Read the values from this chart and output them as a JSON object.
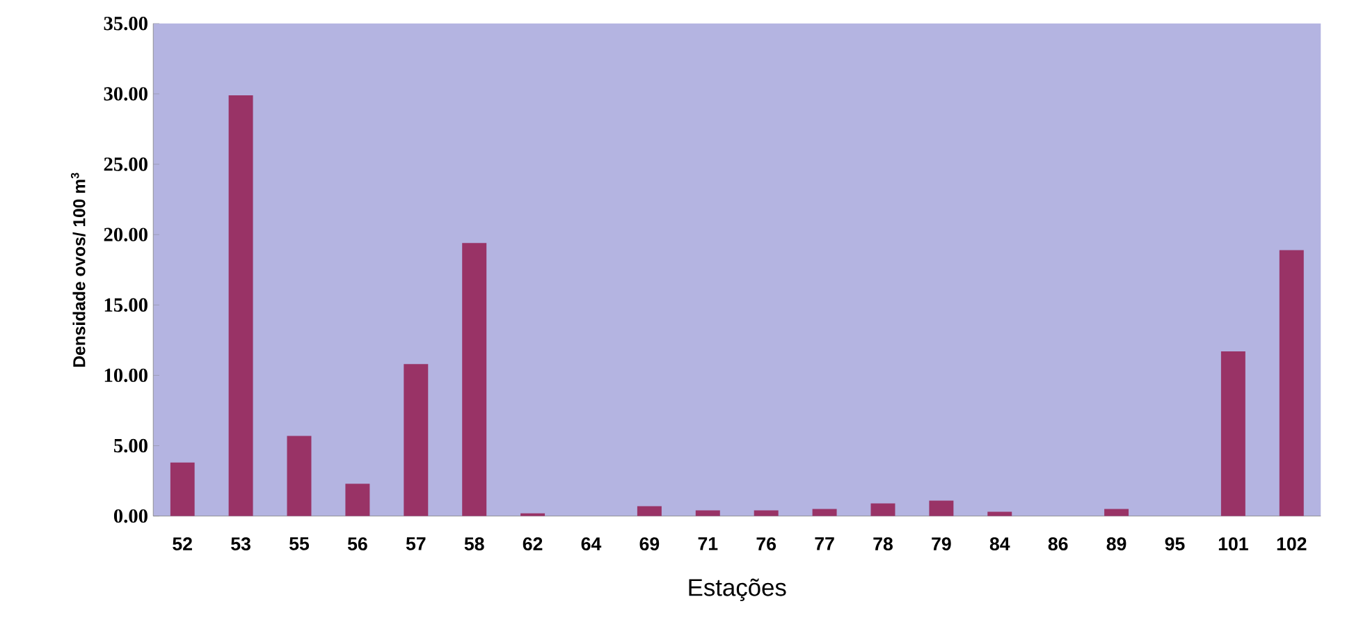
{
  "chart_data": {
    "type": "bar",
    "xlabel": "Estações",
    "ylabel": "Densidade ovos/ 100 m$^{3}$",
    "categories": [
      "52",
      "53",
      "55",
      "56",
      "57",
      "58",
      "62",
      "64",
      "69",
      "71",
      "76",
      "77",
      "78",
      "79",
      "84",
      "86",
      "89",
      "95",
      "101",
      "102"
    ],
    "values": [
      3.8,
      29.9,
      5.7,
      2.3,
      10.8,
      19.4,
      0.2,
      0,
      0.7,
      0.4,
      0.4,
      0.5,
      0.9,
      1.1,
      0.3,
      0,
      0.5,
      0,
      11.7,
      18.9
    ],
    "color": "#993366",
    "ylim": [
      0,
      35
    ],
    "yticks": [
      {
        "value": 0,
        "label": "0.00"
      },
      {
        "value": 5,
        "label": "5.00"
      },
      {
        "value": 10,
        "label": "10.00"
      },
      {
        "value": 15,
        "label": "15.00"
      },
      {
        "value": 20,
        "label": "20.00"
      },
      {
        "value": 25,
        "label": "25.00"
      },
      {
        "value": 30,
        "label": "30.00"
      },
      {
        "value": 35,
        "label": "35.00"
      }
    ],
    "grid": false
  }
}
